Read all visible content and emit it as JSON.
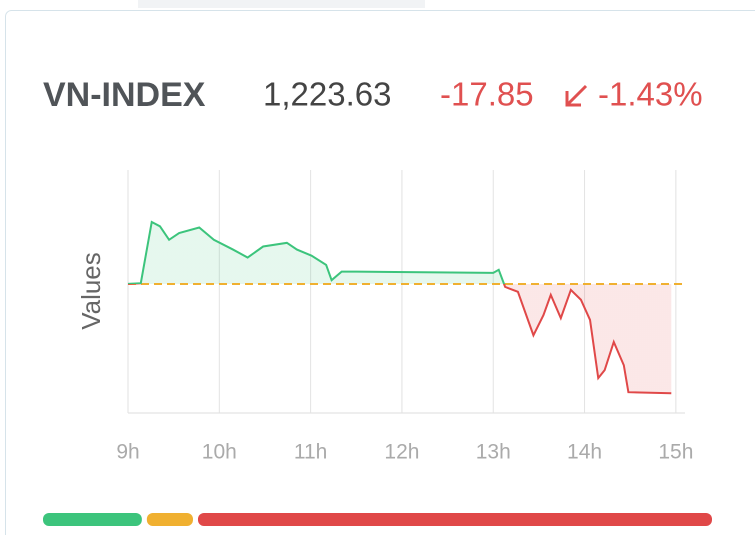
{
  "chart_data": {
    "type": "line",
    "title": "VN-INDEX",
    "price": "1,223.63",
    "change": "-17.85",
    "change_percent": "-1.43%",
    "y_label": "Values",
    "x": [
      9.0,
      9.14,
      9.26,
      9.35,
      9.45,
      9.56,
      9.78,
      9.94,
      10.15,
      10.31,
      10.48,
      10.74,
      10.85,
      11.01,
      11.17,
      11.23,
      11.34,
      11.5,
      13.0,
      13.06,
      13.13,
      13.27,
      13.44,
      13.55,
      13.63,
      13.74,
      13.85,
      13.96,
      14.06,
      14.15,
      14.22,
      14.32,
      14.43,
      14.48,
      14.95
    ],
    "values": [
      1241.5,
      1241.6,
      1251.6,
      1250.9,
      1248.7,
      1249.8,
      1250.7,
      1248.7,
      1247.1,
      1245.8,
      1247.6,
      1248.2,
      1247.1,
      1246.1,
      1244.6,
      1242.1,
      1243.5,
      1243.5,
      1243.3,
      1243.8,
      1241.0,
      1240.2,
      1233.1,
      1236.4,
      1239.7,
      1235.9,
      1240.5,
      1238.9,
      1235.6,
      1226.1,
      1227.4,
      1232.0,
      1228.2,
      1223.8,
      1223.63
    ],
    "reference": 1241.48,
    "up_color": "#3cc47c",
    "down_color": "#e04848",
    "reference_color": "#f0b030",
    "xlim": [
      9,
      15.1
    ],
    "ylim": [
      1220.4,
      1260.1
    ],
    "xticks": [
      {
        "value": 9,
        "label": "9h"
      },
      {
        "value": 10,
        "label": "10h"
      },
      {
        "value": 11,
        "label": "11h"
      },
      {
        "value": 12,
        "label": "12h"
      },
      {
        "value": 13,
        "label": "13h"
      },
      {
        "value": 14,
        "label": "14h"
      },
      {
        "value": 15,
        "label": "15h"
      }
    ],
    "grid": true,
    "breadth": [
      {
        "color": "#3cc47c",
        "value": 15
      },
      {
        "color": "#f0b030",
        "value": 7
      },
      {
        "color": "#e04848",
        "value": 78
      }
    ]
  }
}
